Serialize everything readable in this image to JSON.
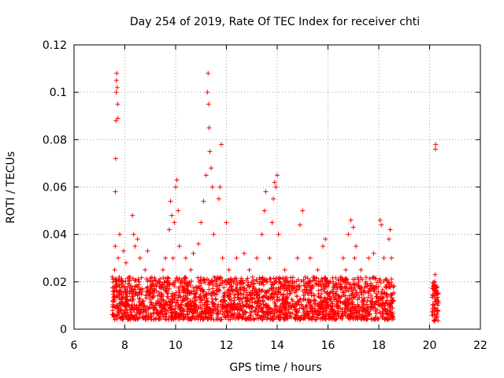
{
  "chart_data": {
    "type": "scatter",
    "title": "Day 254 of 2019, Rate Of TEC Index for receiver chti",
    "xlabel": "GPS time / hours",
    "ylabel": "ROTI / TECUs",
    "xlim": [
      6,
      22
    ],
    "ylim": [
      0,
      0.12
    ],
    "xticks": [
      6,
      8,
      10,
      12,
      14,
      16,
      18,
      20,
      22
    ],
    "yticks": [
      0,
      0.02,
      0.04,
      0.06,
      0.08,
      0.1,
      0.12
    ],
    "xtick_labels": [
      "6",
      "8",
      "10",
      "12",
      "14",
      "16",
      "18",
      "20",
      "22"
    ],
    "ytick_labels": [
      "0",
      "0.02",
      "0.04",
      "0.06",
      "0.08",
      "0.1",
      "0.12"
    ],
    "grid": true,
    "marker": "plus",
    "color": "#ff0000",
    "series": [
      {
        "name": "ROTI",
        "points": [
          [
            7.55,
            0.012
          ],
          [
            7.58,
            0.018
          ],
          [
            7.6,
            0.025
          ],
          [
            7.62,
            0.035
          ],
          [
            7.63,
            0.058
          ],
          [
            7.64,
            0.072
          ],
          [
            7.65,
            0.088
          ],
          [
            7.66,
            0.1
          ],
          [
            7.67,
            0.105
          ],
          [
            7.68,
            0.108
          ],
          [
            7.7,
            0.102
          ],
          [
            7.72,
            0.095
          ],
          [
            7.73,
            0.089
          ],
          [
            7.74,
            0.03
          ],
          [
            7.75,
            0.015
          ],
          [
            7.78,
            0.022
          ],
          [
            7.8,
            0.04
          ],
          [
            7.82,
            0.016
          ],
          [
            7.85,
            0.01
          ],
          [
            7.9,
            0.02
          ],
          [
            7.95,
            0.033
          ],
          [
            8.0,
            0.018
          ],
          [
            8.05,
            0.028
          ],
          [
            8.1,
            0.012
          ],
          [
            8.15,
            0.01
          ],
          [
            8.2,
            0.022
          ],
          [
            8.3,
            0.048
          ],
          [
            8.35,
            0.04
          ],
          [
            8.4,
            0.035
          ],
          [
            8.45,
            0.015
          ],
          [
            8.5,
            0.038
          ],
          [
            8.55,
            0.02
          ],
          [
            8.6,
            0.03
          ],
          [
            8.7,
            0.012
          ],
          [
            8.8,
            0.025
          ],
          [
            8.9,
            0.033
          ],
          [
            9.0,
            0.015
          ],
          [
            9.1,
            0.02
          ],
          [
            9.2,
            0.01
          ],
          [
            9.3,
            0.012
          ],
          [
            9.4,
            0.018
          ],
          [
            9.5,
            0.025
          ],
          [
            9.6,
            0.03
          ],
          [
            9.7,
            0.015
          ],
          [
            9.75,
            0.042
          ],
          [
            9.8,
            0.054
          ],
          [
            9.85,
            0.048
          ],
          [
            9.9,
            0.03
          ],
          [
            9.95,
            0.045
          ],
          [
            10.0,
            0.06
          ],
          [
            10.05,
            0.063
          ],
          [
            10.1,
            0.05
          ],
          [
            10.15,
            0.035
          ],
          [
            10.2,
            0.02
          ],
          [
            10.3,
            0.012
          ],
          [
            10.4,
            0.03
          ],
          [
            10.5,
            0.018
          ],
          [
            10.6,
            0.025
          ],
          [
            10.7,
            0.032
          ],
          [
            10.8,
            0.015
          ],
          [
            10.9,
            0.036
          ],
          [
            11.0,
            0.045
          ],
          [
            11.1,
            0.054
          ],
          [
            11.2,
            0.065
          ],
          [
            11.25,
            0.1
          ],
          [
            11.28,
            0.108
          ],
          [
            11.3,
            0.095
          ],
          [
            11.32,
            0.085
          ],
          [
            11.35,
            0.075
          ],
          [
            11.4,
            0.068
          ],
          [
            11.45,
            0.06
          ],
          [
            11.5,
            0.04
          ],
          [
            11.6,
            0.02
          ],
          [
            11.7,
            0.055
          ],
          [
            11.75,
            0.06
          ],
          [
            11.8,
            0.078
          ],
          [
            11.85,
            0.03
          ],
          [
            11.9,
            0.015
          ],
          [
            12.0,
            0.045
          ],
          [
            12.1,
            0.025
          ],
          [
            12.2,
            0.012
          ],
          [
            12.3,
            0.02
          ],
          [
            12.4,
            0.03
          ],
          [
            12.5,
            0.015
          ],
          [
            12.6,
            0.02
          ],
          [
            12.7,
            0.032
          ],
          [
            12.8,
            0.012
          ],
          [
            12.9,
            0.025
          ],
          [
            13.0,
            0.02
          ],
          [
            13.1,
            0.015
          ],
          [
            13.2,
            0.03
          ],
          [
            13.3,
            0.01
          ],
          [
            13.4,
            0.04
          ],
          [
            13.5,
            0.05
          ],
          [
            13.55,
            0.058
          ],
          [
            13.6,
            0.02
          ],
          [
            13.7,
            0.03
          ],
          [
            13.8,
            0.045
          ],
          [
            13.85,
            0.055
          ],
          [
            13.9,
            0.062
          ],
          [
            13.95,
            0.06
          ],
          [
            14.0,
            0.065
          ],
          [
            14.05,
            0.04
          ],
          [
            14.1,
            0.02
          ],
          [
            14.2,
            0.012
          ],
          [
            14.3,
            0.025
          ],
          [
            14.4,
            0.015
          ],
          [
            14.5,
            0.02
          ],
          [
            14.6,
            0.01
          ],
          [
            14.7,
            0.018
          ],
          [
            14.8,
            0.03
          ],
          [
            14.9,
            0.044
          ],
          [
            15.0,
            0.05
          ],
          [
            15.1,
            0.022
          ],
          [
            15.2,
            0.015
          ],
          [
            15.3,
            0.03
          ],
          [
            15.4,
            0.018
          ],
          [
            15.5,
            0.012
          ],
          [
            15.6,
            0.025
          ],
          [
            15.7,
            0.02
          ],
          [
            15.8,
            0.035
          ],
          [
            15.9,
            0.038
          ],
          [
            16.0,
            0.018
          ],
          [
            16.1,
            0.01
          ],
          [
            16.2,
            0.02
          ],
          [
            16.3,
            0.015
          ],
          [
            16.4,
            0.012
          ],
          [
            16.5,
            0.022
          ],
          [
            16.6,
            0.03
          ],
          [
            16.7,
            0.025
          ],
          [
            16.8,
            0.04
          ],
          [
            16.9,
            0.046
          ],
          [
            17.0,
            0.043
          ],
          [
            17.05,
            0.03
          ],
          [
            17.1,
            0.035
          ],
          [
            17.2,
            0.018
          ],
          [
            17.3,
            0.025
          ],
          [
            17.4,
            0.012
          ],
          [
            17.5,
            0.02
          ],
          [
            17.6,
            0.03
          ],
          [
            17.7,
            0.018
          ],
          [
            17.8,
            0.032
          ],
          [
            17.9,
            0.015
          ],
          [
            18.0,
            0.01
          ],
          [
            18.05,
            0.046
          ],
          [
            18.1,
            0.044
          ],
          [
            18.2,
            0.03
          ],
          [
            18.3,
            0.015
          ],
          [
            18.4,
            0.038
          ],
          [
            18.45,
            0.042
          ],
          [
            18.5,
            0.03
          ],
          [
            18.55,
            0.012
          ],
          [
            20.15,
            0.01
          ],
          [
            20.18,
            0.014
          ],
          [
            20.2,
            0.02
          ],
          [
            20.22,
            0.023
          ],
          [
            20.23,
            0.076
          ],
          [
            20.24,
            0.078
          ],
          [
            20.25,
            0.018
          ],
          [
            20.28,
            0.006
          ],
          [
            20.3,
            0.012
          ]
        ],
        "dense_band": {
          "x_from": 7.5,
          "x_to": 18.6,
          "y_from": 0.004,
          "y_to": 0.022
        },
        "sparse_band": {
          "x_from": 20.1,
          "x_to": 20.35,
          "y_from": 0.003,
          "y_to": 0.02
        }
      }
    ]
  }
}
